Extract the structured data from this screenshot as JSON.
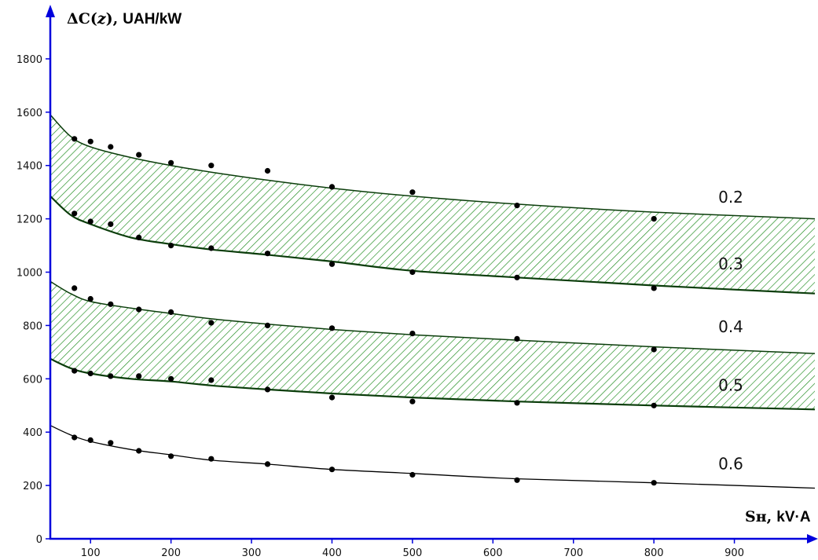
{
  "chart_data": {
    "type": "line",
    "ylabel": "ΔC(z), UAH/kW",
    "ylabel_parts": {
      "symbol": "ΔC(",
      "var": "z",
      "close": "),",
      "unit": "UAH/kW"
    },
    "xlabel": "Sн, kV·A",
    "xlabel_parts": {
      "symbol": "Sн,",
      "unit": "kV·A"
    },
    "xlim": [
      50,
      1000
    ],
    "ylim": [
      0,
      1950
    ],
    "x_ticks": [
      100,
      200,
      300,
      400,
      500,
      600,
      700,
      800,
      900
    ],
    "y_ticks": [
      0,
      200,
      400,
      600,
      800,
      1000,
      1200,
      1400,
      1600,
      1800
    ],
    "grid": false,
    "fill_color": "#1a8a1a",
    "curve_color": "#0b3d0b",
    "point_color": "#000000",
    "axis_color": "#0000dd",
    "series": [
      {
        "name": "0.2",
        "curve_x": [
          50,
          75,
          100,
          150,
          200,
          250,
          320,
          400,
          500,
          630,
          800,
          1000
        ],
        "curve_y": [
          1590,
          1510,
          1470,
          1430,
          1400,
          1375,
          1345,
          1315,
          1285,
          1255,
          1225,
          1200
        ],
        "points_x": [
          80,
          100,
          125,
          160,
          200,
          250,
          320,
          400,
          500,
          630,
          800
        ],
        "points_y": [
          1500,
          1490,
          1470,
          1440,
          1410,
          1400,
          1380,
          1320,
          1300,
          1250,
          1200
        ]
      },
      {
        "name": "0.3",
        "curve_x": [
          50,
          75,
          100,
          150,
          200,
          250,
          320,
          400,
          500,
          630,
          800,
          1000
        ],
        "curve_y": [
          1285,
          1215,
          1180,
          1130,
          1105,
          1085,
          1065,
          1040,
          1005,
          980,
          950,
          920
        ],
        "points_x": [
          80,
          100,
          125,
          160,
          200,
          250,
          320,
          400,
          500,
          630,
          800
        ],
        "points_y": [
          1220,
          1190,
          1180,
          1130,
          1100,
          1090,
          1070,
          1030,
          1000,
          980,
          940
        ]
      },
      {
        "name": "0.4",
        "curve_x": [
          50,
          75,
          100,
          150,
          200,
          250,
          320,
          400,
          500,
          630,
          800,
          1000
        ],
        "curve_y": [
          965,
          920,
          890,
          865,
          845,
          825,
          805,
          785,
          765,
          745,
          720,
          695
        ],
        "points_x": [
          80,
          100,
          125,
          160,
          200,
          250,
          320,
          400,
          500,
          630,
          800
        ],
        "points_y": [
          940,
          900,
          880,
          860,
          850,
          810,
          800,
          790,
          770,
          750,
          710
        ]
      },
      {
        "name": "0.5",
        "curve_x": [
          50,
          75,
          100,
          150,
          200,
          250,
          320,
          400,
          500,
          630,
          800,
          1000
        ],
        "curve_y": [
          675,
          640,
          620,
          600,
          590,
          575,
          560,
          545,
          530,
          515,
          500,
          485
        ],
        "points_x": [
          80,
          100,
          125,
          160,
          200,
          250,
          320,
          400,
          500,
          630,
          800
        ],
        "points_y": [
          630,
          620,
          610,
          610,
          600,
          595,
          560,
          530,
          515,
          510,
          500
        ]
      },
      {
        "name": "0.6",
        "curve_x": [
          50,
          75,
          100,
          150,
          200,
          250,
          320,
          400,
          500,
          630,
          800,
          1000
        ],
        "curve_y": [
          425,
          390,
          365,
          335,
          315,
          295,
          280,
          260,
          245,
          225,
          210,
          190
        ],
        "points_x": [
          80,
          100,
          125,
          160,
          200,
          250,
          320,
          400,
          500,
          630,
          800
        ],
        "points_y": [
          380,
          370,
          360,
          330,
          310,
          300,
          280,
          260,
          240,
          220,
          210
        ]
      }
    ],
    "bands": [
      {
        "upper": "0.2",
        "lower": "0.3"
      },
      {
        "upper": "0.4",
        "lower": "0.5"
      }
    ],
    "curve_labels": [
      {
        "text": "0.2",
        "x": 880,
        "y": 1260
      },
      {
        "text": "0.3",
        "x": 880,
        "y": 1010
      },
      {
        "text": "0.4",
        "x": 880,
        "y": 775
      },
      {
        "text": "0.5",
        "x": 880,
        "y": 555
      },
      {
        "text": "0.6",
        "x": 880,
        "y": 260
      }
    ]
  }
}
